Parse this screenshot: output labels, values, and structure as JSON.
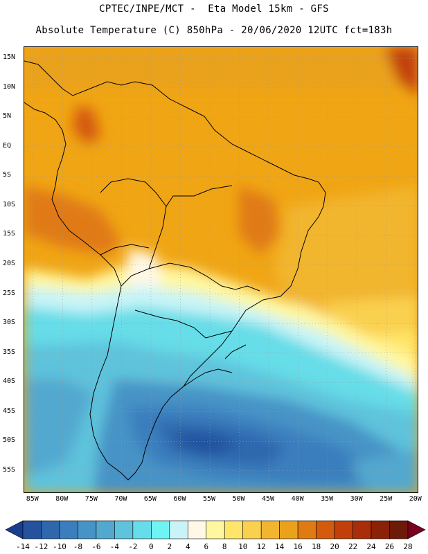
{
  "header": {
    "title_line1": "CPTEC/INPE/MCT -  Eta Model 15km - GFS",
    "title_line2": "Absolute Temperature (C) 850hPa - 20/06/2020 12UTC fct=183h"
  },
  "map": {
    "lat_labels": [
      "15N",
      "10N",
      "5N",
      "EQ",
      "5S",
      "10S",
      "15S",
      "20S",
      "25S",
      "30S",
      "35S",
      "40S",
      "45S",
      "50S",
      "55S"
    ],
    "lat_values": [
      15,
      10,
      5,
      0,
      -5,
      -10,
      -15,
      -20,
      -25,
      -30,
      -35,
      -40,
      -45,
      -50,
      -55
    ],
    "lon_labels": [
      "85W",
      "80W",
      "75W",
      "70W",
      "65W",
      "60W",
      "55W",
      "50W",
      "45W",
      "40W",
      "35W",
      "30W",
      "25W",
      "20W"
    ],
    "lon_values": [
      -85,
      -80,
      -75,
      -70,
      -65,
      -60,
      -55,
      -50,
      -45,
      -40,
      -35,
      -30,
      -25,
      -20
    ],
    "region": "South America",
    "field": "Absolute Temperature 850hPa"
  },
  "colorbar": {
    "labels": [
      "-14",
      "-12",
      "-10",
      "-8",
      "-6",
      "-4",
      "-2",
      "0",
      "2",
      "4",
      "6",
      "8",
      "10",
      "12",
      "14",
      "16",
      "18",
      "20",
      "22",
      "24",
      "26",
      "28"
    ],
    "colors": [
      "#1a3d8f",
      "#24529e",
      "#2f67ad",
      "#3a7ebd",
      "#4693c6",
      "#52a8cf",
      "#5ec3dc",
      "#66dde8",
      "#6ff4f4",
      "#c8f4f8",
      "#fff8e6",
      "#fff7a0",
      "#ffe66b",
      "#fad04f",
      "#f2b52f",
      "#eaa21b",
      "#e07a12",
      "#d45a0c",
      "#c23f0a",
      "#a82d08",
      "#8b2208",
      "#6e1a08",
      "#7a0020"
    ]
  },
  "colors": {
    "land_border": "#000000",
    "grid": "#9a9a9a",
    "warm": "#f0a514",
    "cold": "#3f8fc6"
  }
}
